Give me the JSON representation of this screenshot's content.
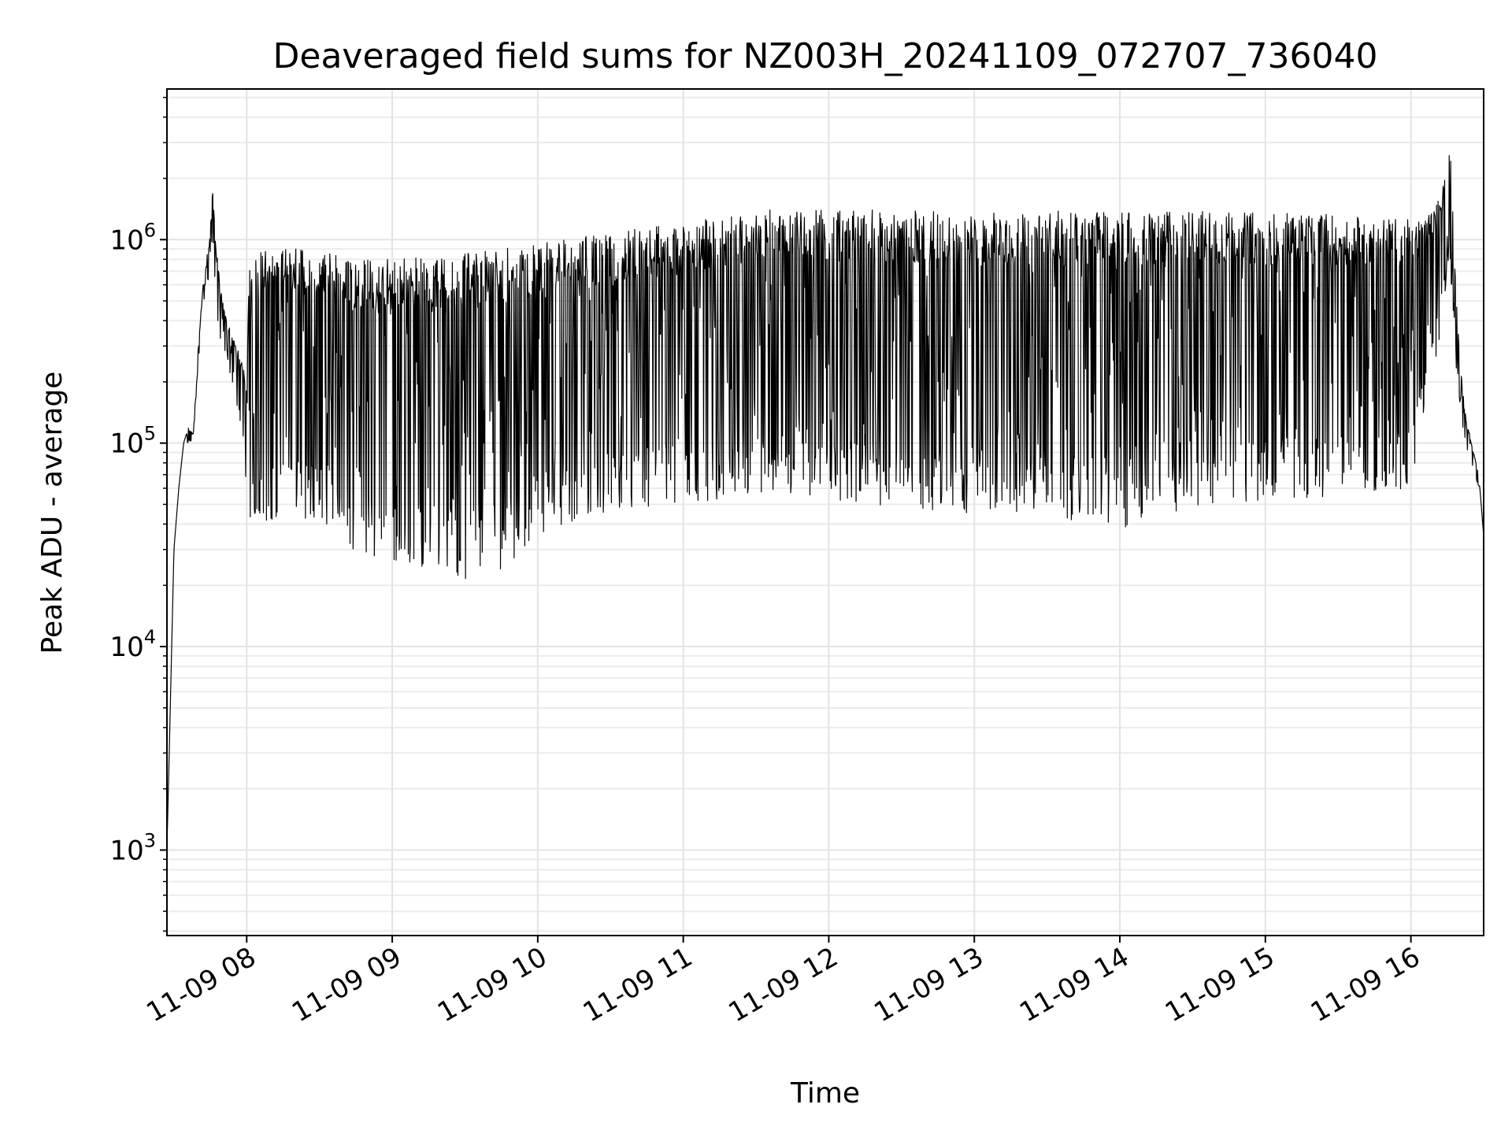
{
  "chart_data": {
    "type": "line",
    "title": "Deaveraged field sums for NZ003H_20241109_072707_736040",
    "xlabel": "Time",
    "ylabel": "Peak ADU - average",
    "yscale": "log",
    "ylim": [
      380,
      5500000
    ],
    "xlim": [
      "2024-11-09 07:27:07",
      "2024-11-09 16:30:00"
    ],
    "grid": "major and minor",
    "line_color": "#000000",
    "x_ticks": [
      {
        "label": "11-09 08",
        "t": "2024-11-09 08:00"
      },
      {
        "label": "11-09 09",
        "t": "2024-11-09 09:00"
      },
      {
        "label": "11-09 10",
        "t": "2024-11-09 10:00"
      },
      {
        "label": "11-09 11",
        "t": "2024-11-09 11:00"
      },
      {
        "label": "11-09 12",
        "t": "2024-11-09 12:00"
      },
      {
        "label": "11-09 13",
        "t": "2024-11-09 13:00"
      },
      {
        "label": "11-09 14",
        "t": "2024-11-09 14:00"
      },
      {
        "label": "11-09 15",
        "t": "2024-11-09 15:00"
      },
      {
        "label": "11-09 16",
        "t": "2024-11-09 16:00"
      }
    ],
    "y_ticks": [
      {
        "base": "10",
        "exp": "3",
        "value": 1000
      },
      {
        "base": "10",
        "exp": "4",
        "value": 10000
      },
      {
        "base": "10",
        "exp": "5",
        "value": 100000
      },
      {
        "base": "10",
        "exp": "6",
        "value": 1000000
      }
    ],
    "series": [
      {
        "name": "",
        "x": [
          "07:27",
          "07:28",
          "07:30",
          "07:32",
          "07:34",
          "07:36",
          "07:38",
          "07:40",
          "07:42",
          "07:44",
          "07:45",
          "07:46",
          "07:47",
          "07:48",
          "07:50",
          "07:52",
          "07:54",
          "07:56",
          "07:58",
          "08:00",
          "08:01",
          "08:02",
          "08:20",
          "08:40",
          "08:41",
          "09:00",
          "09:20",
          "09:40",
          "10:00",
          "10:30",
          "11:00",
          "11:30",
          "12:00",
          "12:30",
          "13:00",
          "13:30",
          "14:00",
          "14:30",
          "15:00",
          "15:30",
          "16:00",
          "16:10",
          "16:14",
          "16:15",
          "16:16",
          "16:18",
          "16:20",
          "16:22",
          "16:25",
          "16:28",
          "16:30"
        ],
        "upper": [
          900,
          2800,
          30000,
          60000,
          100000,
          120000,
          110000,
          300000,
          600000,
          900000,
          1100000,
          2000000,
          1000000,
          800000,
          500000,
          400000,
          350000,
          300000,
          250000,
          200000,
          950000,
          900000,
          900000,
          850000,
          800000,
          800000,
          850000,
          900000,
          950000,
          1100000,
          1200000,
          1400000,
          1400000,
          1400000,
          1350000,
          1400000,
          1350000,
          1400000,
          1350000,
          1350000,
          1250000,
          1400000,
          2200000,
          1500000,
          3500000,
          900000,
          300000,
          150000,
          100000,
          70000,
          35000
        ],
        "lower": [
          900,
          2800,
          30000,
          60000,
          100000,
          100000,
          100000,
          250000,
          400000,
          600000,
          800000,
          700000,
          600000,
          350000,
          300000,
          250000,
          200000,
          150000,
          100000,
          60000,
          40000,
          40000,
          45000,
          35000,
          30000,
          25000,
          22000,
          21000,
          35000,
          45000,
          50000,
          55000,
          50000,
          48000,
          45000,
          42000,
          38000,
          48000,
          52000,
          55000,
          60000,
          250000,
          450000,
          700000,
          800000,
          300000,
          150000,
          100000,
          80000,
          60000,
          35000
        ]
      }
    ]
  }
}
